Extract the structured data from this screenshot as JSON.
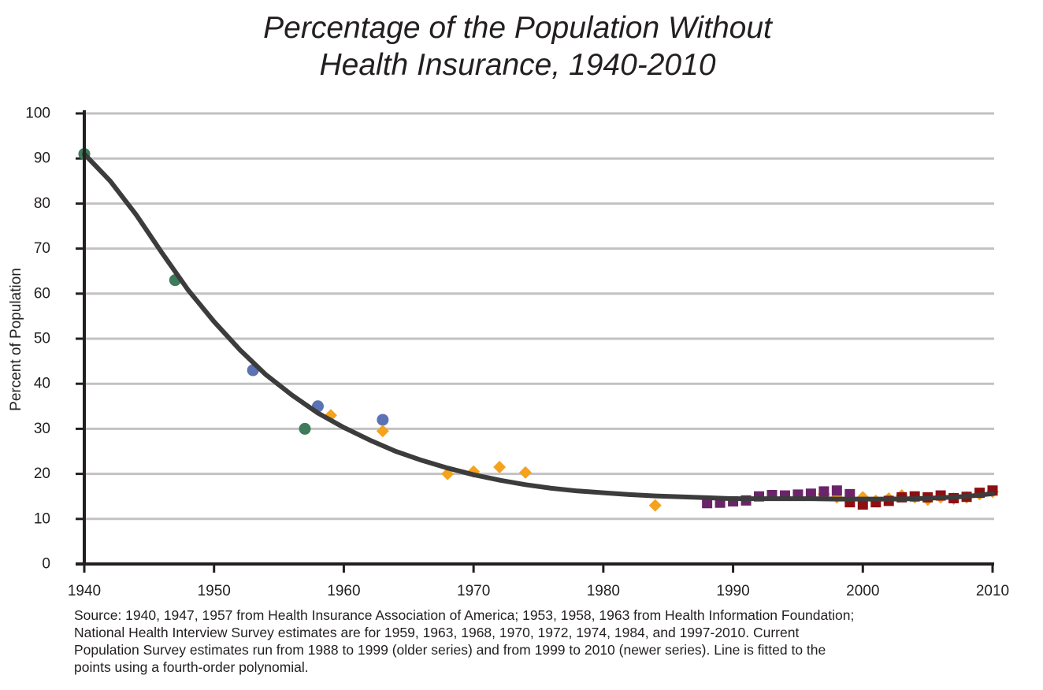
{
  "chart_data": {
    "type": "scatter",
    "title_lines": [
      "Percentage of the Population Without",
      "Health Insurance, 1940-2010"
    ],
    "xlabel": "",
    "ylabel": "Percent of Population",
    "xlim": [
      1940,
      2010
    ],
    "ylim": [
      0,
      100
    ],
    "x_ticks": [
      "1940",
      "1950",
      "1960",
      "1970",
      "1980",
      "1990",
      "2000",
      "2010"
    ],
    "y_ticks": [
      "0",
      "10",
      "20",
      "30",
      "40",
      "50",
      "60",
      "70",
      "80",
      "90",
      "100"
    ],
    "grid": true,
    "legend": "none",
    "series": [
      {
        "marker": "circle",
        "color": "#3e7b5a",
        "points": [
          [
            1940,
            91
          ],
          [
            1947,
            63
          ],
          [
            1957,
            30
          ]
        ]
      },
      {
        "marker": "circle",
        "color": "#5b72b5",
        "points": [
          [
            1953,
            43
          ],
          [
            1958,
            35
          ],
          [
            1963,
            32
          ]
        ]
      },
      {
        "marker": "diamond",
        "color": "#f5a21d",
        "points": [
          [
            1959,
            33
          ],
          [
            1963,
            29.5
          ],
          [
            1968,
            20
          ],
          [
            1970,
            20.5
          ],
          [
            1972,
            21.5
          ],
          [
            1974,
            20.3
          ],
          [
            1984,
            13
          ],
          [
            1997,
            15.5
          ],
          [
            1998,
            14.8
          ],
          [
            1999,
            14.5
          ],
          [
            2000,
            14.8
          ],
          [
            2001,
            14
          ],
          [
            2002,
            14.5
          ],
          [
            2003,
            15.2
          ],
          [
            2004,
            14.8
          ],
          [
            2005,
            14.3
          ],
          [
            2006,
            14.8
          ],
          [
            2007,
            14.5
          ],
          [
            2008,
            14.8
          ],
          [
            2009,
            15.5
          ],
          [
            2010,
            16
          ]
        ]
      },
      {
        "marker": "square",
        "color": "#6b2469",
        "points": [
          [
            1988,
            13.5
          ],
          [
            1989,
            13.6
          ],
          [
            1990,
            13.9
          ],
          [
            1991,
            14.1
          ],
          [
            1992,
            15
          ],
          [
            1993,
            15.3
          ],
          [
            1994,
            15.2
          ],
          [
            1995,
            15.4
          ],
          [
            1996,
            15.6
          ],
          [
            1997,
            16.1
          ],
          [
            1998,
            16.3
          ],
          [
            1999,
            15.5
          ]
        ]
      },
      {
        "marker": "square",
        "color": "#8d0f11",
        "points": [
          [
            1999,
            13.7
          ],
          [
            2000,
            13.2
          ],
          [
            2001,
            13.7
          ],
          [
            2002,
            14
          ],
          [
            2003,
            14.8
          ],
          [
            2004,
            15
          ],
          [
            2005,
            14.8
          ],
          [
            2006,
            15.2
          ],
          [
            2007,
            14.6
          ],
          [
            2008,
            14.9
          ],
          [
            2009,
            15.8
          ],
          [
            2010,
            16.3
          ]
        ]
      }
    ],
    "fit_line": {
      "color": "#3c3c3c",
      "points": [
        [
          1940,
          91
        ],
        [
          1942,
          85
        ],
        [
          1944,
          77.5
        ],
        [
          1946,
          69
        ],
        [
          1948,
          60.8
        ],
        [
          1950,
          53.8
        ],
        [
          1952,
          47.5
        ],
        [
          1954,
          42
        ],
        [
          1956,
          37.5
        ],
        [
          1958,
          33.5
        ],
        [
          1960,
          30.3
        ],
        [
          1962,
          27.5
        ],
        [
          1964,
          25
        ],
        [
          1966,
          23
        ],
        [
          1968,
          21.3
        ],
        [
          1970,
          19.8
        ],
        [
          1972,
          18.6
        ],
        [
          1974,
          17.6
        ],
        [
          1976,
          16.8
        ],
        [
          1978,
          16.2
        ],
        [
          1980,
          15.8
        ],
        [
          1982,
          15.4
        ],
        [
          1984,
          15.1
        ],
        [
          1986,
          14.9
        ],
        [
          1988,
          14.7
        ],
        [
          1990,
          14.5
        ],
        [
          1992,
          14.5
        ],
        [
          1994,
          14.5
        ],
        [
          1996,
          14.5
        ],
        [
          1998,
          14.4
        ],
        [
          2000,
          14.4
        ],
        [
          2002,
          14.4
        ],
        [
          2004,
          14.5
        ],
        [
          2006,
          14.7
        ],
        [
          2008,
          15
        ],
        [
          2010,
          15.6
        ]
      ]
    }
  },
  "source_lines": [
    "Source: 1940, 1947, 1957 from Health Insurance Association of America; 1953, 1958, 1963 from Health Information Foundation;",
    "National Health Interview Survey estimates are for 1959, 1963, 1968, 1970, 1972, 1974, 1984, and 1997-2010. Current",
    "Population Survey estimates run from 1988 to 1999 (older series) and from 1999 to 2010 (newer series). Line is fitted to the",
    "points using a fourth-order polynomial."
  ]
}
